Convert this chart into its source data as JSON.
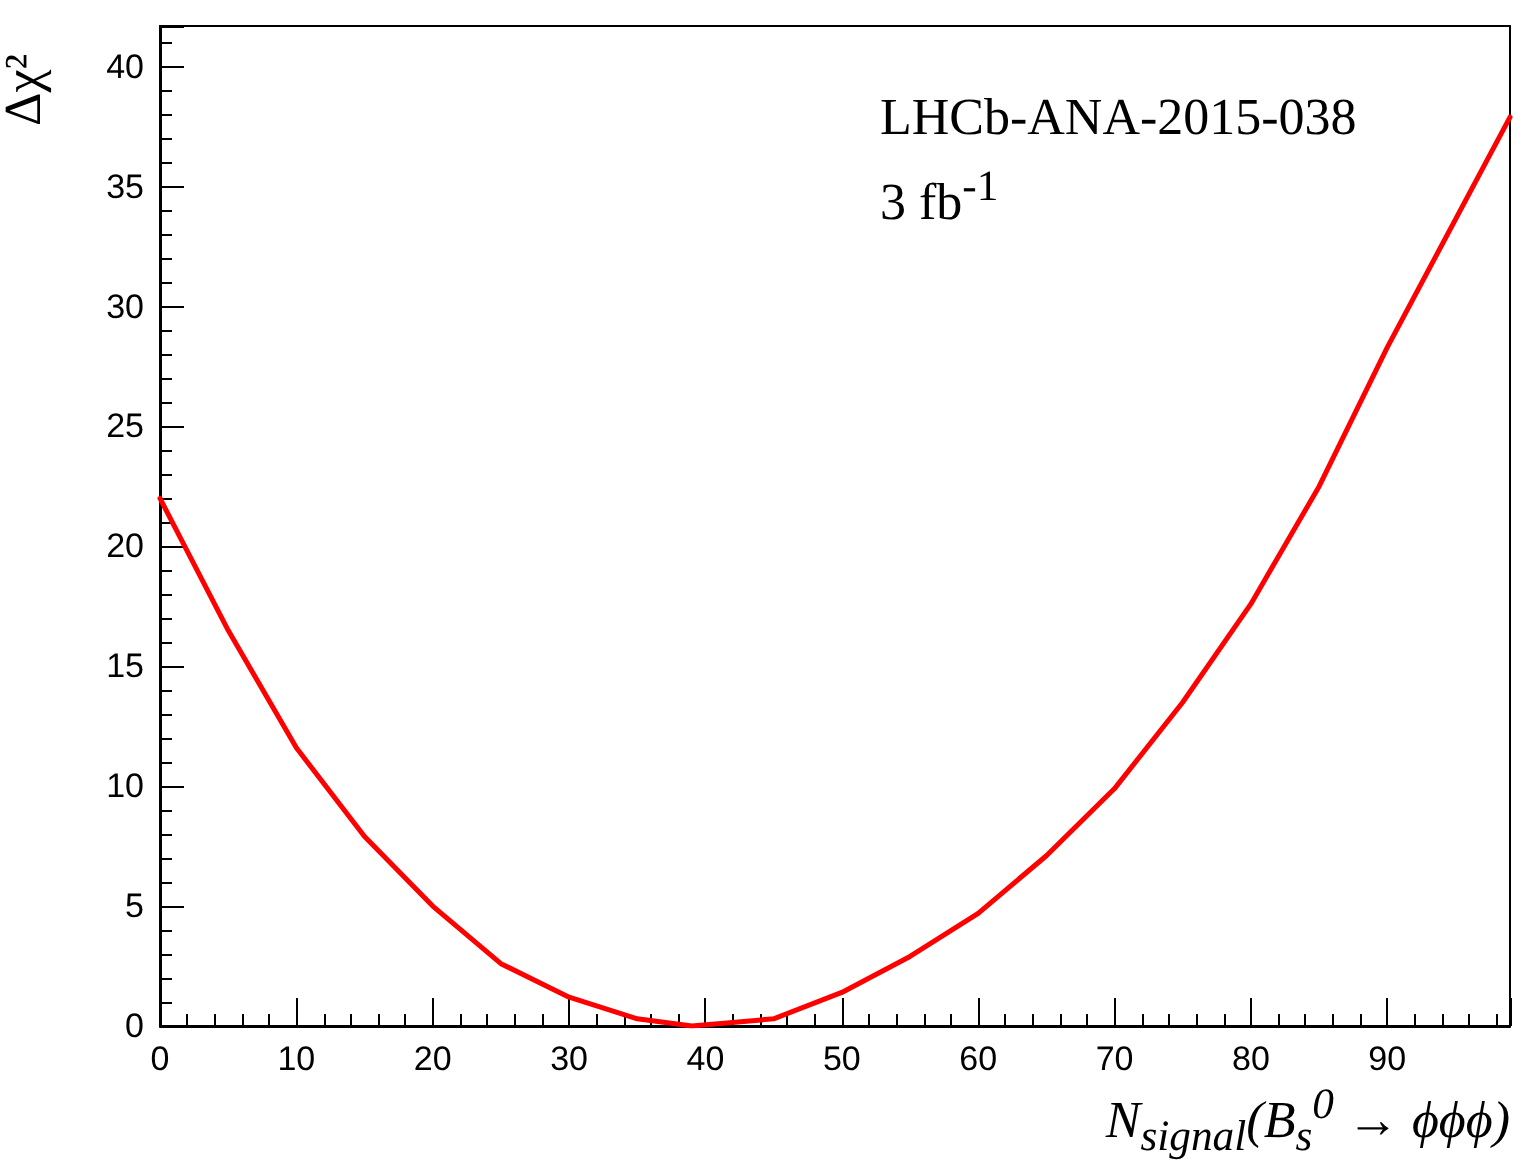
{
  "chart_data": {
    "type": "line",
    "xlabel": "N$_{signal}$(B$_{s}$$^{0}$ → ϕϕϕ)",
    "ylabel": "Δχ²",
    "annotations": [
      "LHCb-ANA-2015-038",
      "3 fb$^{-1}$"
    ],
    "x": [
      0,
      5,
      10,
      15,
      20,
      25,
      30,
      35,
      39,
      45,
      50,
      55,
      60,
      65,
      70,
      75,
      80,
      85,
      90,
      99
    ],
    "series": [
      {
        "color": "#ff0000",
        "values": [
          22.0,
          16.5,
          11.6,
          7.9,
          5.0,
          2.6,
          1.2,
          0.3,
          0,
          0.3,
          1.4,
          2.9,
          4.7,
          7.1,
          9.9,
          13.5,
          17.6,
          22.5,
          28.3,
          37.9
        ]
      }
    ],
    "xlim": [
      0,
      99
    ],
    "xticks": [
      0,
      10,
      20,
      30,
      40,
      50,
      60,
      70,
      80,
      90
    ],
    "ylim": [
      0,
      41.7
    ],
    "yticks": [
      0,
      5,
      10,
      15,
      20,
      25,
      30,
      35,
      40
    ],
    "grid": false,
    "marker": "none",
    "line_style": "solid"
  }
}
